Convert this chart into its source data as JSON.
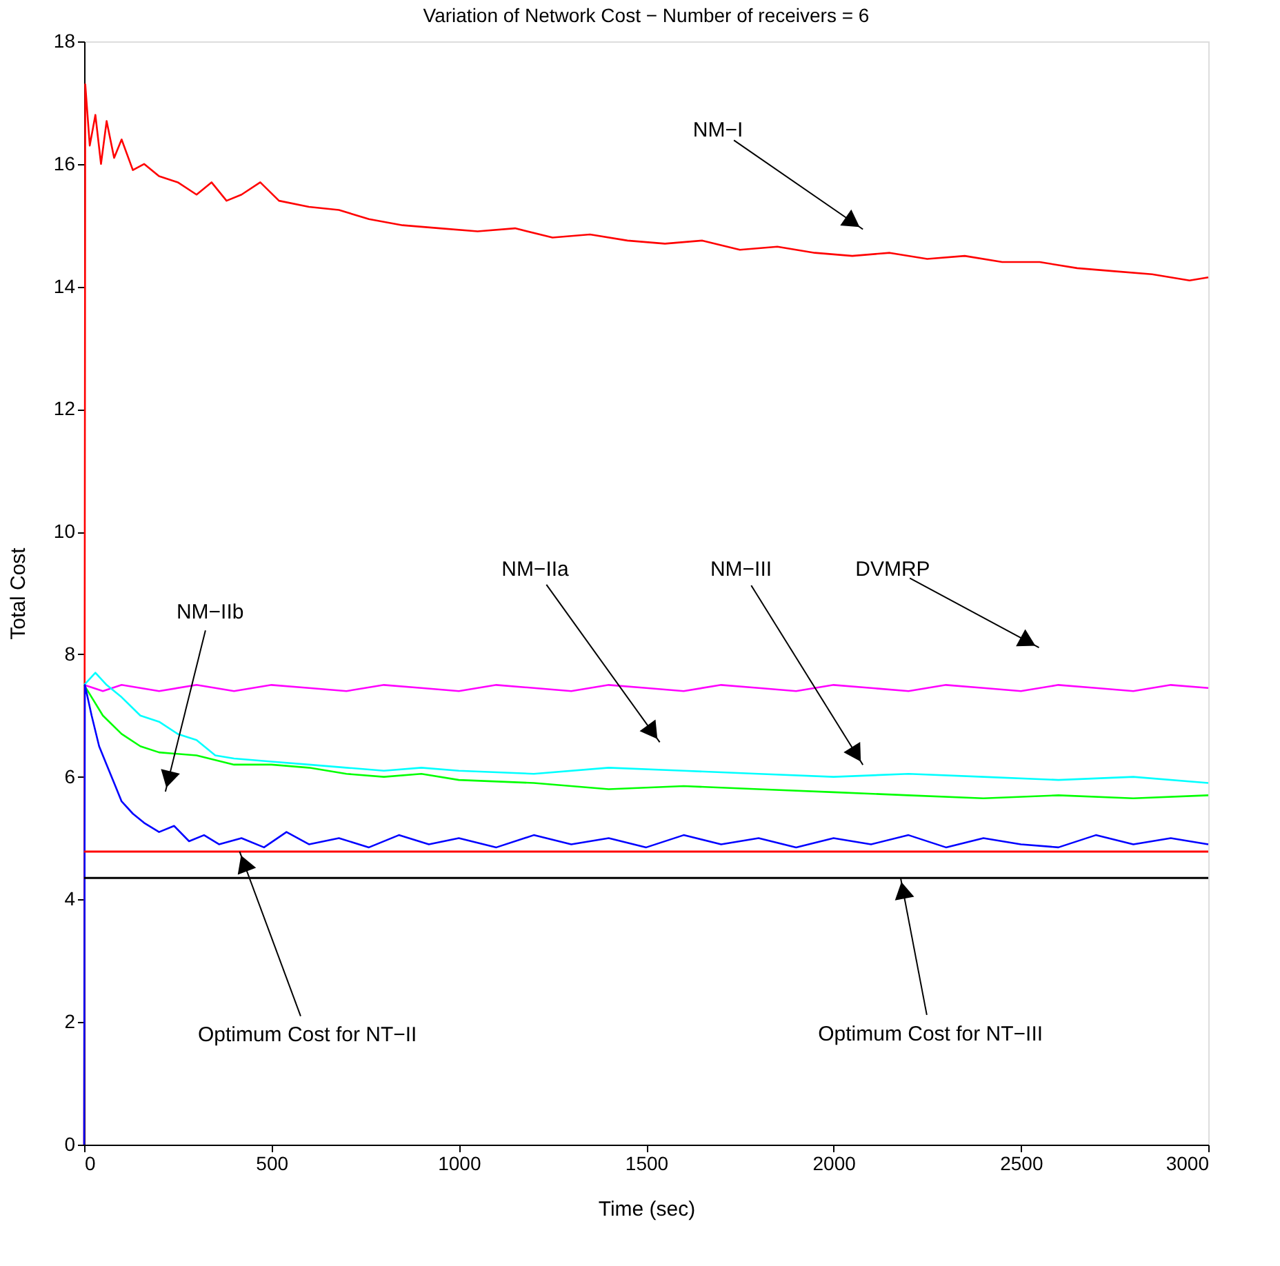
{
  "chart_data": {
    "type": "line",
    "title": "Variation of Network Cost − Number of receivers = 6",
    "xlabel": "Time (sec)",
    "ylabel": "Total Cost",
    "xlim": [
      0,
      3000
    ],
    "xticks": [
      0,
      500,
      1000,
      1500,
      2000,
      2500,
      3000
    ],
    "ylim": [
      0,
      18
    ],
    "yticks": [
      0,
      2,
      4,
      6,
      8,
      10,
      12,
      14,
      16,
      18
    ],
    "grid": false,
    "marker": "none",
    "line_style": "solid",
    "series": [
      {
        "color": "#ff0000",
        "x": [
          0,
          3,
          15,
          30,
          45,
          60,
          80,
          100,
          130,
          160,
          200,
          250,
          300,
          340,
          380,
          420,
          470,
          520,
          600,
          680,
          760,
          850,
          950,
          1050,
          1150,
          1250,
          1350,
          1450,
          1550,
          1650,
          1750,
          1850,
          1950,
          2050,
          2150,
          2250,
          2350,
          2450,
          2550,
          2650,
          2750,
          2850,
          2950,
          3000
        ],
        "values": [
          0,
          17.3,
          16.3,
          16.8,
          16.0,
          16.7,
          16.1,
          16.4,
          15.9,
          16.0,
          15.8,
          15.7,
          15.5,
          15.7,
          15.4,
          15.5,
          15.7,
          15.4,
          15.3,
          15.25,
          15.1,
          15.0,
          14.95,
          14.9,
          14.95,
          14.8,
          14.85,
          14.75,
          14.7,
          14.75,
          14.6,
          14.65,
          14.55,
          14.5,
          14.55,
          14.45,
          14.5,
          14.4,
          14.4,
          14.3,
          14.25,
          14.2,
          14.1,
          14.15
        ]
      },
      {
        "color": "#ff00ff",
        "x": [
          0,
          50,
          100,
          200,
          300,
          400,
          500,
          600,
          700,
          800,
          900,
          1000,
          1100,
          1200,
          1300,
          1400,
          1500,
          1600,
          1700,
          1800,
          1900,
          2000,
          2100,
          2200,
          2300,
          2400,
          2500,
          2600,
          2700,
          2800,
          2900,
          3000
        ],
        "values": [
          7.5,
          7.4,
          7.5,
          7.4,
          7.5,
          7.4,
          7.5,
          7.45,
          7.4,
          7.5,
          7.45,
          7.4,
          7.5,
          7.45,
          7.4,
          7.5,
          7.45,
          7.4,
          7.5,
          7.45,
          7.4,
          7.5,
          7.45,
          7.4,
          7.5,
          7.45,
          7.4,
          7.5,
          7.45,
          7.4,
          7.5,
          7.45
        ]
      },
      {
        "color": "#00ffff",
        "x": [
          0,
          30,
          60,
          100,
          150,
          200,
          250,
          300,
          350,
          400,
          500,
          600,
          700,
          800,
          900,
          1000,
          1200,
          1400,
          1600,
          1800,
          2000,
          2200,
          2400,
          2600,
          2800,
          3000
        ],
        "values": [
          7.5,
          7.7,
          7.5,
          7.3,
          7.0,
          6.9,
          6.7,
          6.6,
          6.35,
          6.3,
          6.25,
          6.2,
          6.15,
          6.1,
          6.15,
          6.1,
          6.05,
          6.15,
          6.1,
          6.05,
          6.0,
          6.05,
          6.0,
          5.95,
          6.0,
          5.9
        ]
      },
      {
        "color": "#00ff00",
        "x": [
          0,
          50,
          100,
          150,
          200,
          300,
          400,
          500,
          600,
          700,
          800,
          900,
          1000,
          1200,
          1400,
          1600,
          1800,
          2000,
          2200,
          2400,
          2600,
          2800,
          3000
        ],
        "values": [
          7.5,
          7.0,
          6.7,
          6.5,
          6.4,
          6.35,
          6.2,
          6.2,
          6.15,
          6.05,
          6.0,
          6.05,
          5.95,
          5.9,
          5.8,
          5.85,
          5.8,
          5.75,
          5.7,
          5.65,
          5.7,
          5.65,
          5.7
        ]
      },
      {
        "color": "#0000ff",
        "x": [
          0,
          2,
          20,
          40,
          60,
          80,
          100,
          130,
          160,
          200,
          240,
          280,
          320,
          360,
          420,
          480,
          540,
          600,
          680,
          760,
          840,
          920,
          1000,
          1100,
          1200,
          1300,
          1400,
          1500,
          1600,
          1700,
          1800,
          1900,
          2000,
          2100,
          2200,
          2300,
          2400,
          2500,
          2600,
          2700,
          2800,
          2900,
          3000
        ],
        "values": [
          0,
          7.5,
          7.0,
          6.5,
          6.2,
          5.9,
          5.6,
          5.4,
          5.25,
          5.1,
          5.2,
          4.95,
          5.05,
          4.9,
          5.0,
          4.85,
          5.1,
          4.9,
          5.0,
          4.85,
          5.05,
          4.9,
          5.0,
          4.85,
          5.05,
          4.9,
          5.0,
          4.85,
          5.05,
          4.9,
          5.0,
          4.85,
          5.0,
          4.9,
          5.05,
          4.85,
          5.0,
          4.9,
          4.85,
          5.05,
          4.9,
          5.0,
          4.9
        ]
      }
    ],
    "ref_lines": [
      {
        "axis": "y",
        "value": 4.78,
        "color": "#ff0000",
        "line_style": "solid"
      },
      {
        "axis": "y",
        "value": 4.35,
        "color": "#000000",
        "line_style": "solid"
      }
    ],
    "annotations": [
      "NM−I",
      "NM−IIa",
      "NM−III",
      "DVMRP",
      "NM−IIb",
      {
        "text": "Optimum Cost for NT−II",
        "x": 415,
        "y": 4.78
      },
      {
        "text": "Optimum Cost for NT−III",
        "x": 2179,
        "y": 4.35
      }
    ]
  }
}
